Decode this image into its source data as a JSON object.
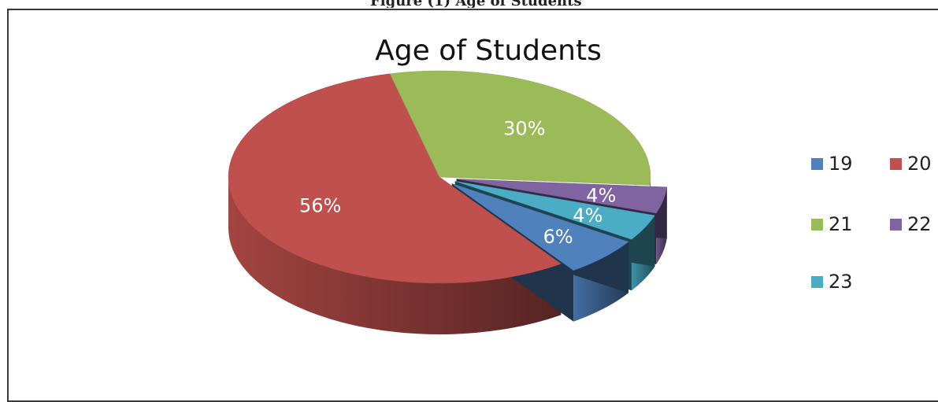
{
  "caption_fragment": "Figure (1) Age of Students",
  "chart_data": {
    "type": "pie",
    "title": "Age of Students",
    "categories": [
      "19",
      "20",
      "21",
      "22",
      "23"
    ],
    "values": [
      6,
      56,
      30,
      4,
      4
    ],
    "data_labels": [
      "6%",
      "56%",
      "30%",
      "4%",
      "4%"
    ],
    "colors": [
      "#4F81BD",
      "#C0504D",
      "#9BBB59",
      "#8064A2",
      "#4BACC6"
    ],
    "legend_position": "right",
    "style": "3d-exploded"
  }
}
